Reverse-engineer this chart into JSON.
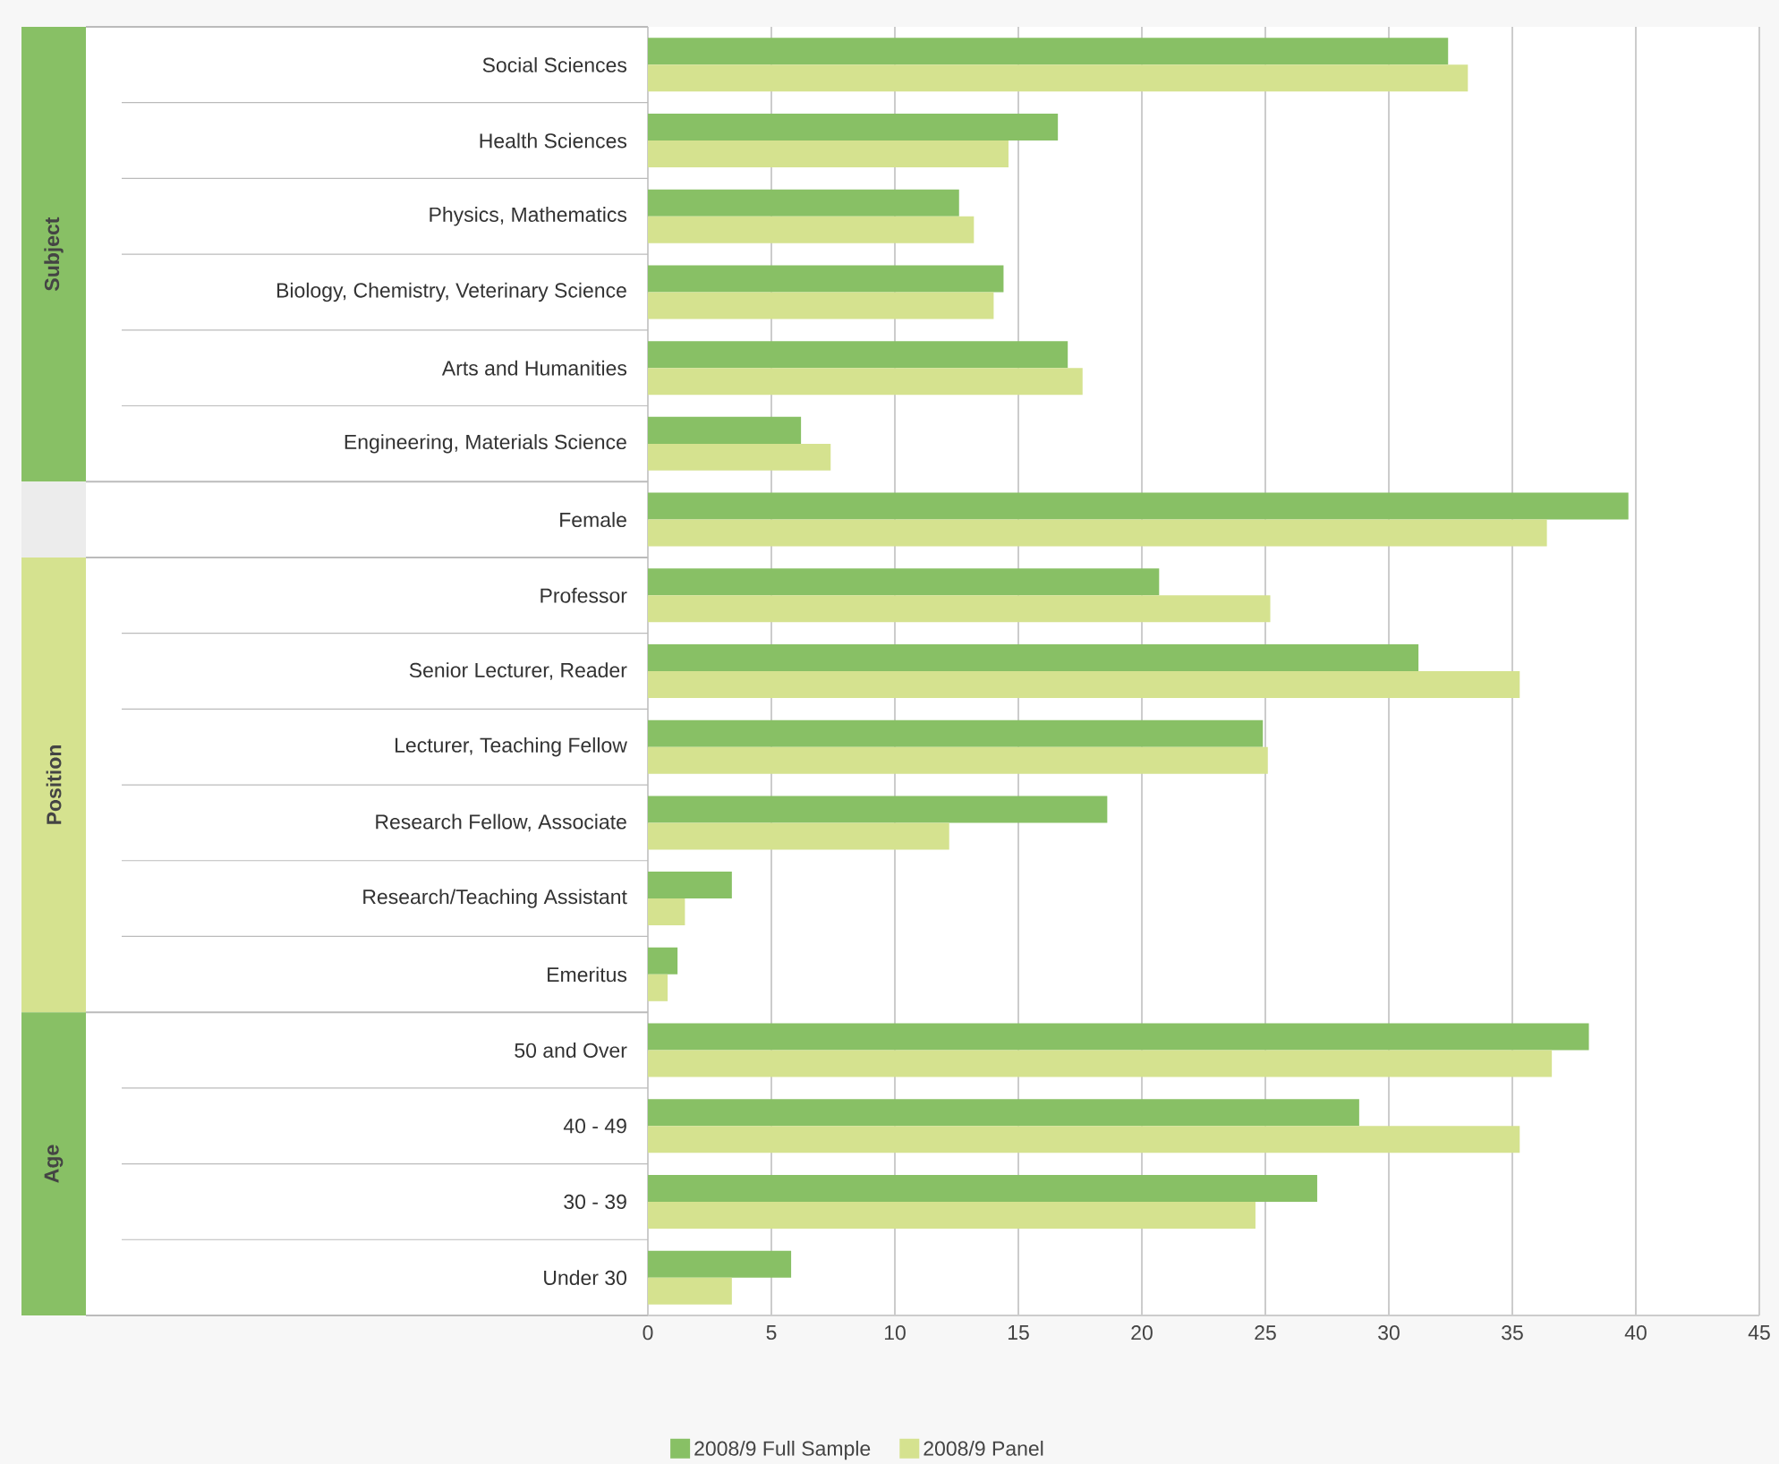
{
  "chart_data": {
    "type": "bar",
    "orientation": "horizontal",
    "categories": [
      "Social Sciences",
      "Health Sciences",
      "Physics, Mathematics",
      "Biology, Chemistry, Veterinary Science",
      "Arts and Humanities",
      "Engineering, Materials Science",
      "Female",
      "Professor",
      "Senior Lecturer, Reader",
      "Lecturer, Teaching Fellow",
      "Research Fellow, Associate",
      "Research/Teaching Assistant",
      "Emeritus",
      "50 and Over",
      "40 - 49",
      "30 - 39",
      "Under 30"
    ],
    "series": [
      {
        "name": "2008/9 Full Sample",
        "color": "#88c065",
        "values": [
          32.4,
          16.6,
          12.6,
          14.4,
          17.0,
          6.2,
          39.7,
          20.7,
          31.2,
          24.9,
          18.6,
          3.4,
          1.2,
          38.1,
          28.8,
          27.1,
          5.8
        ]
      },
      {
        "name": "2008/9 Panel",
        "color": "#d5e28f",
        "values": [
          33.2,
          14.6,
          13.2,
          14.0,
          17.6,
          7.4,
          36.4,
          25.2,
          35.3,
          25.1,
          12.2,
          1.5,
          0.8,
          36.6,
          35.3,
          24.6,
          3.4
        ]
      }
    ],
    "xlim": [
      0,
      45
    ],
    "xticks": [
      0,
      5,
      10,
      15,
      20,
      25,
      30,
      35,
      40,
      45
    ],
    "grid": "x",
    "legend": "bottom",
    "annotations": [
      "Subject",
      "Position",
      "Age"
    ]
  }
}
